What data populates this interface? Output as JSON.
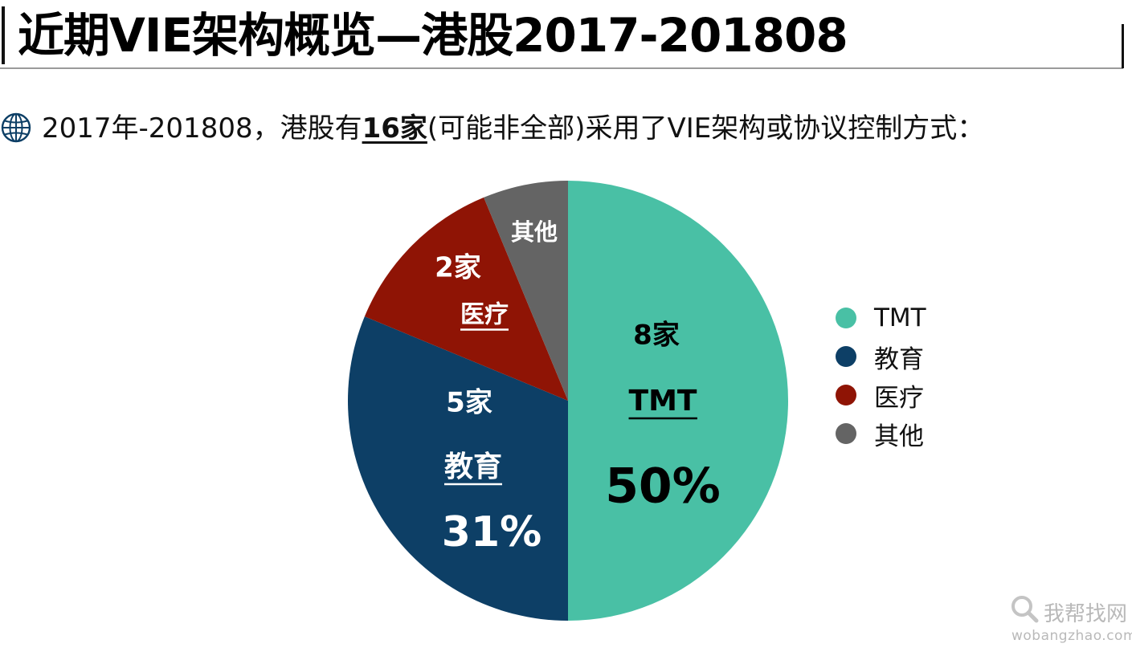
{
  "header": {
    "title": "近期VIE架构概览—港股2017-201808"
  },
  "subtitle": {
    "prefix": "2017年-201808，港股有",
    "emphasis": "16家",
    "suffix": "(可能非全部)采用了VIE架构或协议控制方式："
  },
  "chart_data": {
    "type": "pie",
    "title": "",
    "slices": [
      {
        "name": "TMT",
        "count": 8,
        "count_label": "8家",
        "percent_label": "50%",
        "color": "#49c0a5",
        "label_color": "#000000"
      },
      {
        "name": "教育",
        "count": 5,
        "count_label": "5家",
        "percent_label": "31%",
        "color": "#0d3f66",
        "label_color": "#ffffff"
      },
      {
        "name": "医疗",
        "count": 2,
        "count_label": "2家",
        "percent_label": "",
        "color": "#8f1405",
        "label_color": "#ffffff"
      },
      {
        "name": "其他",
        "count": 1,
        "count_label": "",
        "percent_label": "",
        "color": "#646464",
        "label_color": "#ffffff"
      }
    ],
    "start_angle_deg": 0,
    "direction": "clockwise",
    "legend": {
      "position": "right",
      "entries": [
        "TMT",
        "教育",
        "医疗",
        "其他"
      ]
    }
  },
  "icons": {
    "subtitle_icon": "globe-icon",
    "watermark_icon": "magnifier-icon"
  },
  "watermark": {
    "cn": "我帮找网",
    "en": "wobangzhao.com"
  }
}
